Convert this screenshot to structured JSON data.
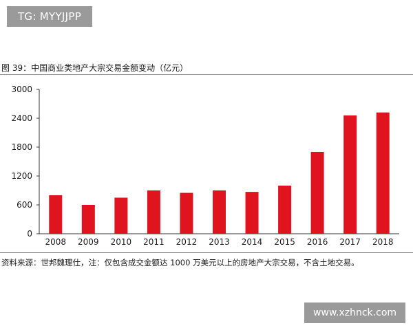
{
  "watermark_top": "TG: MYYJJPP",
  "watermark_bottom": "www.xzhnck.com",
  "source_note": "资料来源：世邦魏理仕，注：仅包含成交金额达 1000 万美元以上的房地产大宗交易，不含土地交易。",
  "colors": {
    "bar": "#e0141f",
    "axis": "#333333"
  },
  "chart_data": {
    "type": "bar",
    "title": "图 39：中国商业类地产大宗交易金额变动（亿元）",
    "xlabel": "",
    "ylabel": "",
    "categories": [
      "2008",
      "2009",
      "2010",
      "2011",
      "2012",
      "2013",
      "2014",
      "2015",
      "2016",
      "2017",
      "2018"
    ],
    "values": [
      800,
      600,
      750,
      900,
      850,
      900,
      870,
      1000,
      1700,
      2460,
      2520
    ],
    "ylim": [
      0,
      3000
    ],
    "yticks": [
      0,
      600,
      1200,
      1800,
      2400,
      3000
    ],
    "grid": false,
    "legend": "none"
  }
}
